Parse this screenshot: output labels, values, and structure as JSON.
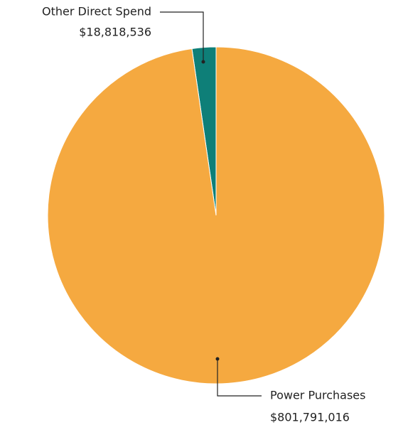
{
  "chart_data": {
    "type": "pie",
    "categories": [
      "Other Direct Spend",
      "Power Purchases"
    ],
    "values": [
      18818536,
      801791016
    ],
    "value_labels": [
      "$18,818,536",
      "$801,791,016"
    ],
    "colors": [
      "#0e7f78",
      "#f5a940"
    ]
  }
}
